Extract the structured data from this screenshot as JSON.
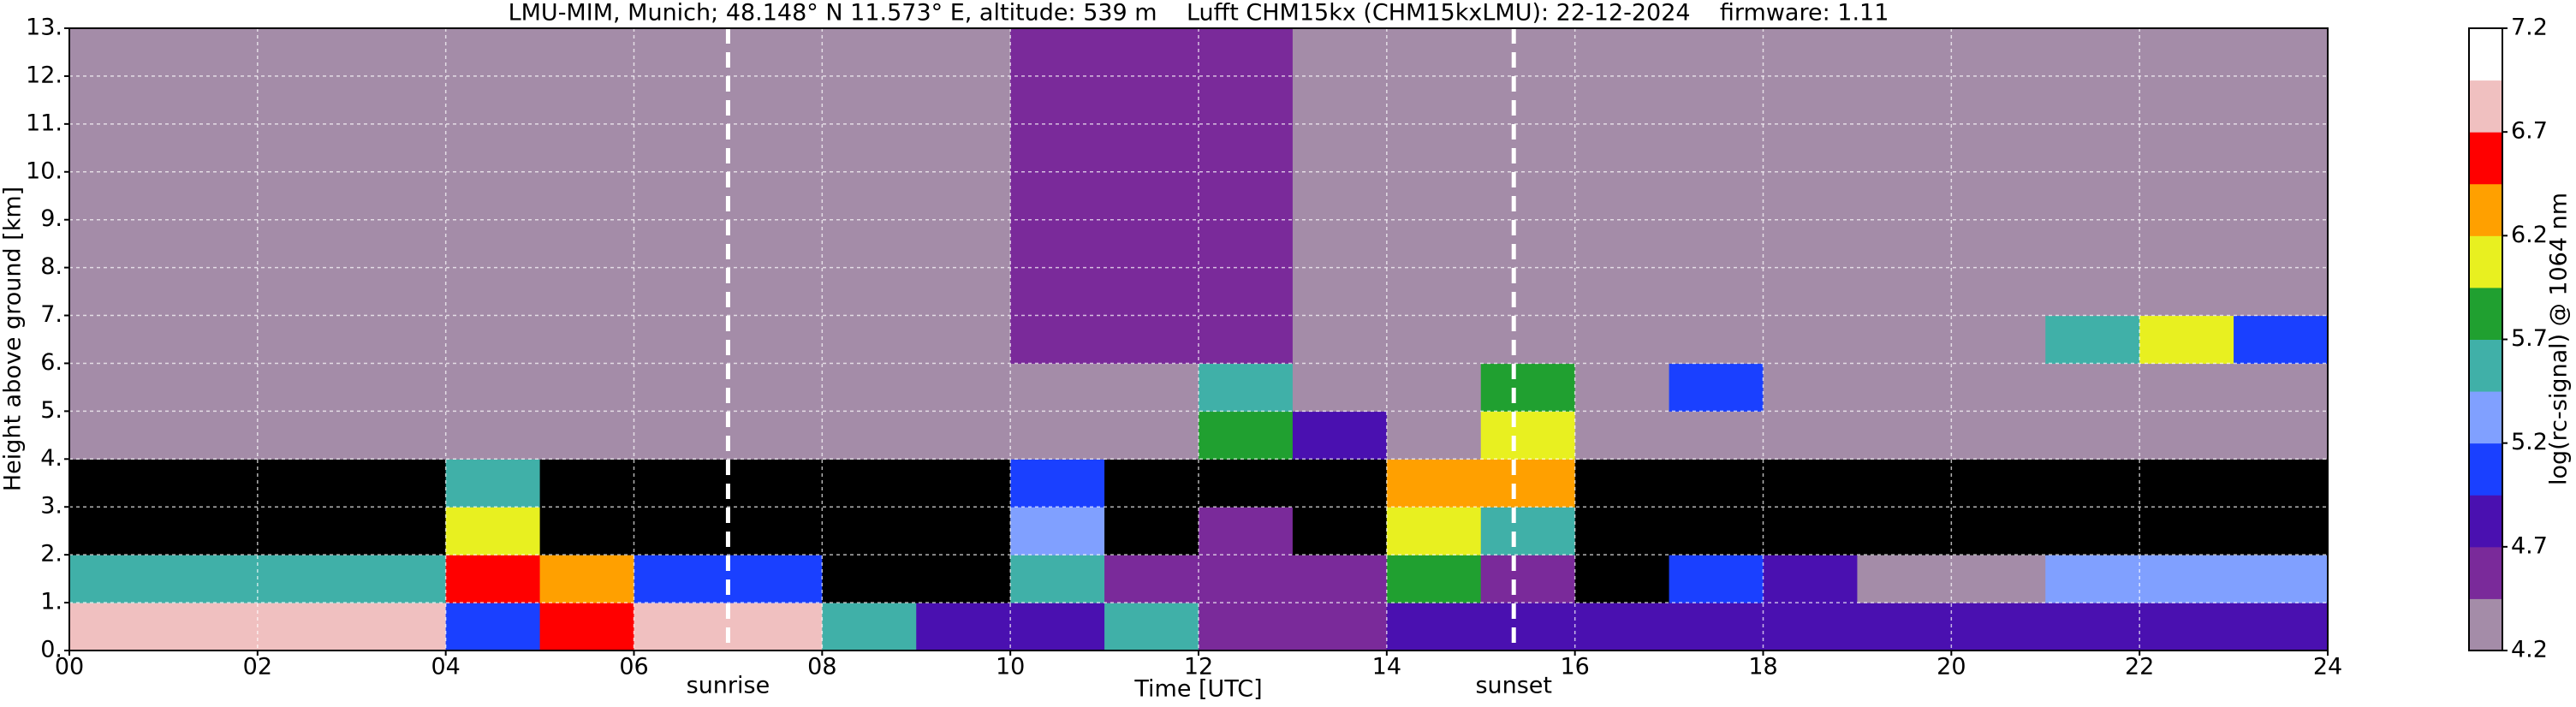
{
  "chart_data": {
    "type": "heatmap",
    "title": "LMU-MIM, Munich; 48.148° N 11.573° E, altitude: 539 m    Lufft CHM15kx (CHM15kxLMU): 22-12-2024    firmware: 1.11",
    "xlabel": "Time [UTC]",
    "ylabel": "Height above ground [km]",
    "colorbar_label": "log(rc-signal) @ 1064 nm",
    "xlim": [
      0,
      24
    ],
    "ylim": [
      0,
      13
    ],
    "xticks": [
      {
        "value": 0,
        "label": "00"
      },
      {
        "value": 2,
        "label": "02"
      },
      {
        "value": 4,
        "label": "04"
      },
      {
        "value": 6,
        "label": "06"
      },
      {
        "value": 8,
        "label": "08"
      },
      {
        "value": 10,
        "label": "10"
      },
      {
        "value": 12,
        "label": "12"
      },
      {
        "value": 14,
        "label": "14"
      },
      {
        "value": 16,
        "label": "16"
      },
      {
        "value": 18,
        "label": "18"
      },
      {
        "value": 20,
        "label": "20"
      },
      {
        "value": 22,
        "label": "22"
      },
      {
        "value": 24,
        "label": "24"
      }
    ],
    "yticks": [
      {
        "value": 0,
        "label": "0."
      },
      {
        "value": 1,
        "label": "1."
      },
      {
        "value": 2,
        "label": "2."
      },
      {
        "value": 3,
        "label": "3."
      },
      {
        "value": 4,
        "label": "4."
      },
      {
        "value": 5,
        "label": "5."
      },
      {
        "value": 6,
        "label": "6."
      },
      {
        "value": 7,
        "label": "7."
      },
      {
        "value": 8,
        "label": "8."
      },
      {
        "value": 9,
        "label": "9."
      },
      {
        "value": 10,
        "label": "10."
      },
      {
        "value": 11,
        "label": "11."
      },
      {
        "value": 12,
        "label": "12."
      },
      {
        "value": 13,
        "label": "13."
      }
    ],
    "clim": [
      4.2,
      7.2
    ],
    "cticks": [
      4.2,
      4.7,
      5.2,
      5.7,
      6.2,
      6.7,
      7.2
    ],
    "colormap": [
      "#a48ca8",
      "#7a2a9a",
      "#4a10b0",
      "#1a40ff",
      "#80a0ff",
      "#40b0a8",
      "#20a030",
      "#e8f020",
      "#ffa000",
      "#ff0000",
      "#f0c0c0",
      "#ffffff"
    ],
    "under_color": "#000000",
    "grid": true,
    "annotations": [
      {
        "text": "sunrise",
        "x": 7.0
      },
      {
        "text": "sunset",
        "x": 15.35
      }
    ],
    "z": [
      [
        6.8,
        6.8,
        6.8,
        6.8,
        5.0,
        6.5,
        6.8,
        6.8,
        5.5,
        4.9,
        4.9,
        5.5,
        4.6,
        4.5,
        4.7,
        4.8,
        4.8,
        4.7,
        4.8,
        4.9,
        4.9,
        4.9,
        4.9,
        4.9
      ],
      [
        5.6,
        5.6,
        5.6,
        5.6,
        6.5,
        6.2,
        5.0,
        5.0,
        4.0,
        4.0,
        5.5,
        4.5,
        4.6,
        4.5,
        5.8,
        4.5,
        4.0,
        5.0,
        4.8,
        4.4,
        4.4,
        5.2,
        5.2,
        5.2
      ],
      [
        4.0,
        4.0,
        4.0,
        4.0,
        6.0,
        4.0,
        4.0,
        4.0,
        4.0,
        4.0,
        5.3,
        4.0,
        4.6,
        4.0,
        6.0,
        5.5,
        4.0,
        4.0,
        4.0,
        4.0,
        4.0,
        4.0,
        4.0,
        4.0
      ],
      [
        4.0,
        4.0,
        4.0,
        4.0,
        5.6,
        4.0,
        4.0,
        4.0,
        4.0,
        4.0,
        5.0,
        4.0,
        4.0,
        4.0,
        6.2,
        6.3,
        4.0,
        4.0,
        4.0,
        4.0,
        4.0,
        4.0,
        4.0,
        4.0
      ],
      [
        4.4,
        4.4,
        4.4,
        4.4,
        4.4,
        4.4,
        4.4,
        4.4,
        4.4,
        4.4,
        4.4,
        4.4,
        5.8,
        4.8,
        4.4,
        6.0,
        4.4,
        4.4,
        4.4,
        4.4,
        4.4,
        4.4,
        4.4,
        4.4
      ],
      [
        4.4,
        4.4,
        4.4,
        4.4,
        4.4,
        4.4,
        4.4,
        4.4,
        4.4,
        4.4,
        4.4,
        4.4,
        5.5,
        4.4,
        4.4,
        5.8,
        4.4,
        5.0,
        4.4,
        4.4,
        4.4,
        4.4,
        4.4,
        4.4
      ],
      [
        4.4,
        4.4,
        4.4,
        4.4,
        4.4,
        4.4,
        4.4,
        4.4,
        4.4,
        4.4,
        4.5,
        4.5,
        4.5,
        4.4,
        4.4,
        4.4,
        4.4,
        4.4,
        4.4,
        4.4,
        4.4,
        5.5,
        6.0,
        5.0
      ],
      [
        4.4,
        4.4,
        4.4,
        4.4,
        4.4,
        4.4,
        4.4,
        4.4,
        4.4,
        4.4,
        4.5,
        4.5,
        4.5,
        4.4,
        4.4,
        4.4,
        4.4,
        4.4,
        4.4,
        4.4,
        4.4,
        4.4,
        4.4,
        4.4
      ],
      [
        4.4,
        4.4,
        4.4,
        4.4,
        4.4,
        4.4,
        4.4,
        4.4,
        4.4,
        4.4,
        4.5,
        4.5,
        4.5,
        4.4,
        4.4,
        4.4,
        4.4,
        4.4,
        4.4,
        4.4,
        4.4,
        4.4,
        4.4,
        4.4
      ],
      [
        4.4,
        4.4,
        4.4,
        4.4,
        4.4,
        4.4,
        4.4,
        4.4,
        4.4,
        4.4,
        4.5,
        4.5,
        4.5,
        4.4,
        4.4,
        4.4,
        4.4,
        4.4,
        4.4,
        4.4,
        4.4,
        4.4,
        4.4,
        4.4
      ],
      [
        4.4,
        4.4,
        4.4,
        4.4,
        4.4,
        4.4,
        4.4,
        4.4,
        4.4,
        4.4,
        4.5,
        4.5,
        4.5,
        4.4,
        4.4,
        4.4,
        4.4,
        4.4,
        4.4,
        4.4,
        4.4,
        4.4,
        4.4,
        4.4
      ],
      [
        4.4,
        4.4,
        4.4,
        4.4,
        4.4,
        4.4,
        4.4,
        4.4,
        4.4,
        4.4,
        4.5,
        4.5,
        4.5,
        4.4,
        4.4,
        4.4,
        4.4,
        4.4,
        4.4,
        4.4,
        4.4,
        4.4,
        4.4,
        4.4
      ],
      [
        4.4,
        4.4,
        4.4,
        4.4,
        4.4,
        4.4,
        4.4,
        4.4,
        4.4,
        4.4,
        4.5,
        4.5,
        4.5,
        4.4,
        4.4,
        4.4,
        4.4,
        4.4,
        4.4,
        4.4,
        4.4,
        4.4,
        4.4,
        4.4
      ]
    ]
  }
}
